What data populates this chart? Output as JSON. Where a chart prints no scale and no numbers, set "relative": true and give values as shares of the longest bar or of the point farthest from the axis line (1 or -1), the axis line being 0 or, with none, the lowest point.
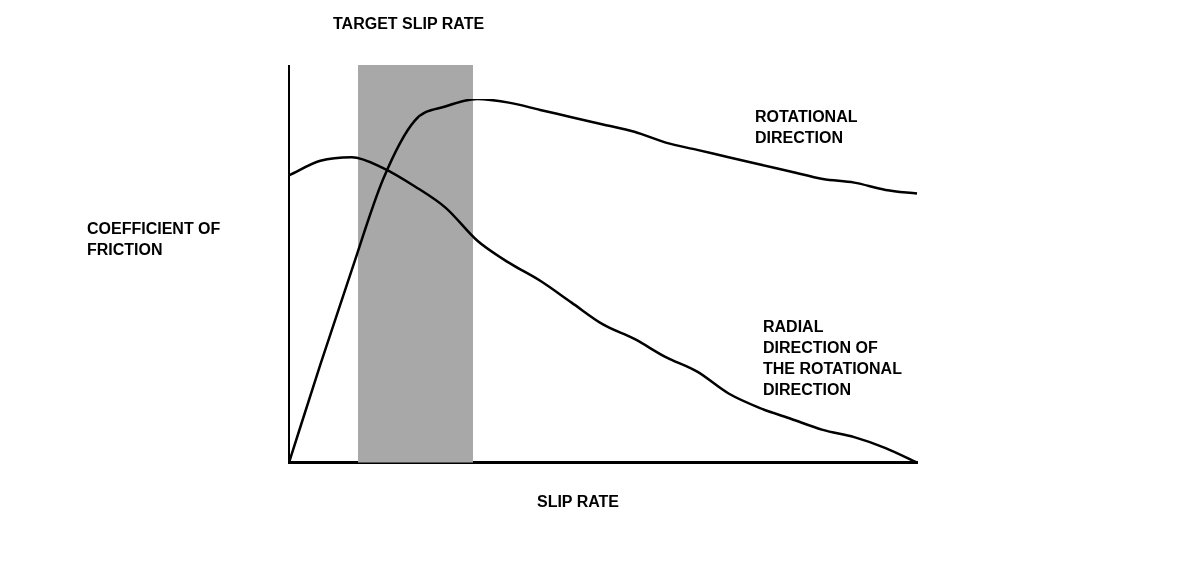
{
  "chart_data": {
    "type": "line",
    "relative": true,
    "xlabel": "SLIP RATE",
    "ylabel": "COEFFICIENT OF FRICTION",
    "categories": [
      null,
      null,
      null,
      null,
      null,
      null,
      null,
      null,
      null,
      null,
      null,
      null,
      null,
      null,
      null,
      null,
      null,
      null,
      null,
      null,
      null
    ],
    "series": [
      {
        "name": "ROTATIONAL DIRECTION",
        "color": "#000000",
        "values": [
          0,
          0.27,
          0.53,
          0.78,
          0.94,
          0.98,
          1,
          0.99,
          0.97,
          0.95,
          0.93,
          0.91,
          0.88,
          0.86,
          0.84,
          0.82,
          0.8,
          0.78,
          0.77,
          0.75,
          0.74
        ]
      },
      {
        "name": "RADIAL DIRECTION OF THE ROTATIONAL DIRECTION",
        "color": "#000000",
        "values": [
          0.79,
          0.83,
          0.84,
          0.81,
          0.76,
          0.7,
          0.61,
          0.55,
          0.5,
          0.44,
          0.38,
          0.34,
          0.29,
          0.25,
          0.19,
          0.15,
          0.12,
          0.09,
          0.07,
          0.04,
          0
        ]
      }
    ],
    "annotations": [
      "TARGET SLIP RATE"
    ],
    "grid": false,
    "legend": false,
    "marker": "none",
    "line_style": "solid"
  }
}
